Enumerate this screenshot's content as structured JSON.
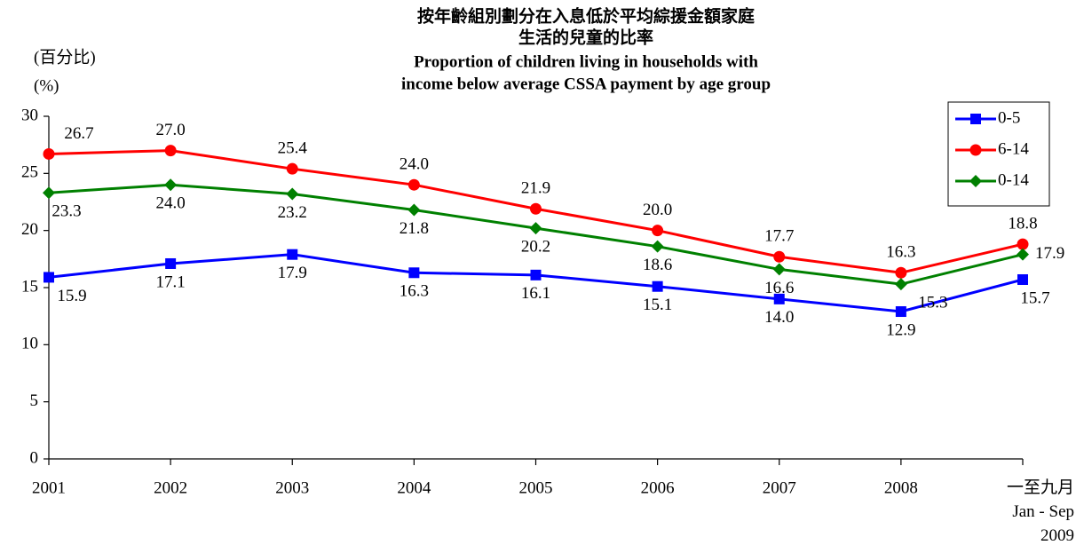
{
  "chart_data": {
    "type": "line",
    "title": [
      "按年齡組別劃分在入息低於平均綜援金額家庭",
      "生活的兒童的比率",
      "Proportion of children living in households with",
      "income below average CSSA payment  by age group"
    ],
    "y_label": [
      "(百分比)",
      "(%)"
    ],
    "categories": [
      "2001",
      "2002",
      "2003",
      "2004",
      "2005",
      "2006",
      "2007",
      "2008",
      "一至九月\nJan - Sep\n2009"
    ],
    "ylim": [
      0,
      30
    ],
    "yticks": [
      0,
      5,
      10,
      15,
      20,
      25,
      30
    ],
    "legend": "upper right",
    "series": [
      {
        "name": "0-5",
        "color": "#0000ff",
        "marker": "square",
        "values": [
          15.9,
          17.1,
          17.9,
          16.3,
          16.1,
          15.1,
          14.0,
          12.9,
          15.7
        ],
        "value_labels": [
          "15.9",
          "17.1",
          "17.9",
          "16.3",
          "16.1",
          "15.1",
          "14.0",
          "12.9",
          "15.7"
        ]
      },
      {
        "name": "6-14",
        "color": "#ff0000",
        "marker": "circle",
        "values": [
          26.7,
          27.0,
          25.4,
          24.0,
          21.9,
          20.0,
          17.7,
          16.3,
          18.8
        ],
        "value_labels": [
          "26.7",
          "27.0",
          "25.4",
          "24.0",
          "21.9",
          "20.0",
          "17.7",
          "16.3",
          "18.8"
        ]
      },
      {
        "name": "0-14",
        "color": "#008000",
        "marker": "diamond",
        "values": [
          23.3,
          24.0,
          23.2,
          21.8,
          20.2,
          18.6,
          16.6,
          15.3,
          17.9
        ],
        "value_labels": [
          "23.3",
          "24.0",
          "23.2",
          "21.8",
          "20.2",
          "18.6",
          "16.6",
          "15.3",
          "17.9"
        ]
      }
    ]
  }
}
